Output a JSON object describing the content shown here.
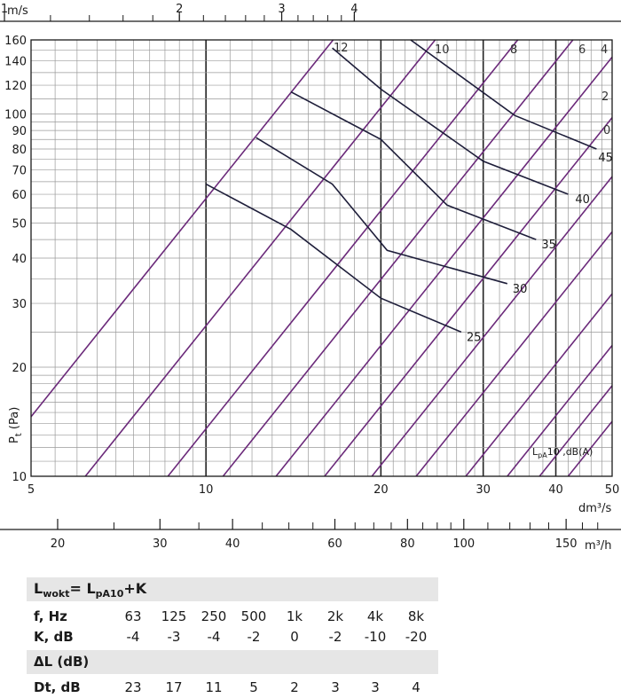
{
  "chart_data": {
    "type": "line",
    "x_axis": {
      "label": "dm³/s",
      "scale": "log",
      "range": [
        5,
        50
      ],
      "ticks": [
        "5",
        "10",
        "20",
        "30",
        "40",
        "50"
      ]
    },
    "y_axis": {
      "label_main": "P",
      "label_sub": "t",
      "label_suffix": " (Pa)",
      "scale": "log",
      "range": [
        10,
        160
      ],
      "ticks": [
        "10",
        "20",
        "30",
        "40",
        "50",
        "60",
        "70",
        "80",
        "90",
        "100",
        "120",
        "140",
        "160"
      ]
    },
    "top_axis": {
      "label": "m/s",
      "ticks": [
        "1",
        "2",
        "3",
        "4"
      ]
    },
    "bottom_axis": {
      "label": "m³/h",
      "ticks": [
        "20",
        "30",
        "40",
        "60",
        "80",
        "100",
        "150"
      ]
    },
    "legend_note_main": "L",
    "legend_note_sub": "pA",
    "legend_note_rest": "10 ,dB(A)",
    "family_lines": [
      {
        "label": "12"
      },
      {
        "label": "10"
      },
      {
        "label": "8"
      },
      {
        "label": "6"
      },
      {
        "label": "4"
      },
      {
        "label": "2"
      },
      {
        "label": "0"
      }
    ],
    "noise_curves": [
      {
        "label": "25",
        "points": [
          [
            10,
            64
          ],
          [
            14,
            48
          ],
          [
            20,
            31
          ],
          [
            27.5,
            25
          ]
        ]
      },
      {
        "label": "30",
        "points": [
          [
            12.2,
            86
          ],
          [
            16.5,
            64
          ],
          [
            20.5,
            42
          ],
          [
            33,
            34
          ]
        ]
      },
      {
        "label": "35",
        "points": [
          [
            14,
            115
          ],
          [
            20,
            85
          ],
          [
            26,
            56
          ],
          [
            37,
            45
          ]
        ]
      },
      {
        "label": "40",
        "points": [
          [
            16.5,
            152
          ],
          [
            20,
            117
          ],
          [
            30,
            74
          ],
          [
            42,
            60
          ]
        ]
      },
      {
        "label": "45",
        "points": [
          [
            22.5,
            160
          ],
          [
            34,
            99
          ],
          [
            47,
            80
          ]
        ]
      }
    ]
  },
  "table": {
    "formula_main": "L",
    "formula_sub1": "wokt",
    "formula_eq": "= L",
    "formula_sub2": "pA10",
    "formula_rest": "+K",
    "rows": [
      {
        "label": "f, Hz",
        "values": [
          "63",
          "125",
          "250",
          "500",
          "1k",
          "2k",
          "4k",
          "8k"
        ]
      },
      {
        "label": "K, dB",
        "values": [
          "-4",
          "-3",
          "-4",
          "-2",
          "0",
          "-2",
          "-10",
          "-20"
        ]
      }
    ],
    "section2_title": "ΔL (dB)",
    "dt_row": {
      "label": "Dt, dB",
      "values": [
        "23",
        "17",
        "11",
        "5",
        "2",
        "3",
        "3",
        "4"
      ]
    }
  }
}
